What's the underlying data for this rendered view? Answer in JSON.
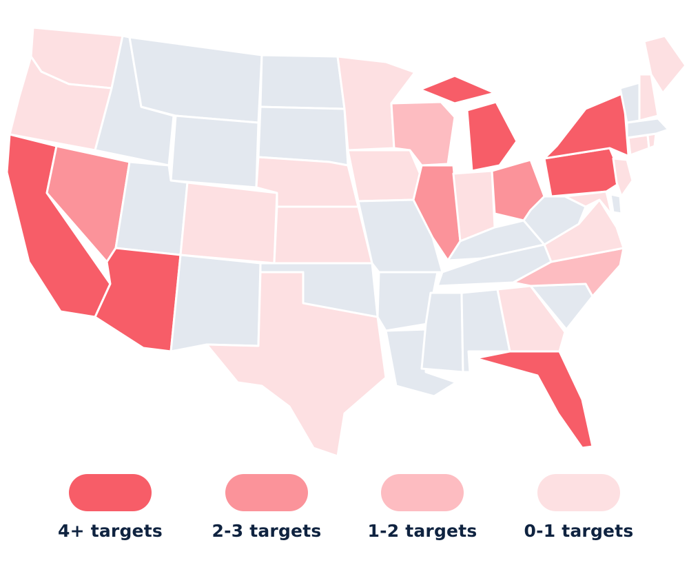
{
  "colors": {
    "tier_4plus": "#f75d68",
    "tier_2_3": "#fb939a",
    "tier_1_2": "#fdbcc1",
    "tier_0_1": "#fde0e2",
    "none": "#e3e8ef"
  },
  "legend": [
    {
      "label": "4+ targets",
      "tier": "tier_4plus"
    },
    {
      "label": "2-3 targets",
      "tier": "tier_2_3"
    },
    {
      "label": "1-2 targets",
      "tier": "tier_1_2"
    },
    {
      "label": "0-1 targets",
      "tier": "tier_0_1"
    }
  ],
  "states": {
    "WA": "tier_0_1",
    "OR": "tier_0_1",
    "CA": "tier_4plus",
    "NV": "tier_2_3",
    "ID": "none",
    "MT": "none",
    "WY": "none",
    "UT": "none",
    "AZ": "tier_4plus",
    "CO": "tier_0_1",
    "NM": "none",
    "ND": "none",
    "SD": "none",
    "NE": "tier_0_1",
    "KS": "tier_0_1",
    "OK": "none",
    "TX": "tier_0_1",
    "MN": "tier_0_1",
    "IA": "tier_0_1",
    "MO": "none",
    "AR": "none",
    "LA": "none",
    "WI": "tier_1_2",
    "IL": "tier_2_3",
    "MI": "tier_4plus",
    "IN": "tier_0_1",
    "OH": "tier_2_3",
    "KY": "none",
    "TN": "none",
    "MS": "none",
    "AL": "none",
    "GA": "tier_0_1",
    "FL": "tier_4plus",
    "SC": "none",
    "NC": "tier_1_2",
    "VA": "tier_0_1",
    "WV": "none",
    "PA": "tier_4plus",
    "NY": "tier_4plus",
    "NJ": "tier_0_1",
    "DE": "none",
    "MD": "tier_0_1",
    "CT": "tier_0_1",
    "RI": "tier_0_1",
    "MA": "none",
    "VT": "none",
    "NH": "tier_0_1",
    "ME": "tier_0_1"
  }
}
